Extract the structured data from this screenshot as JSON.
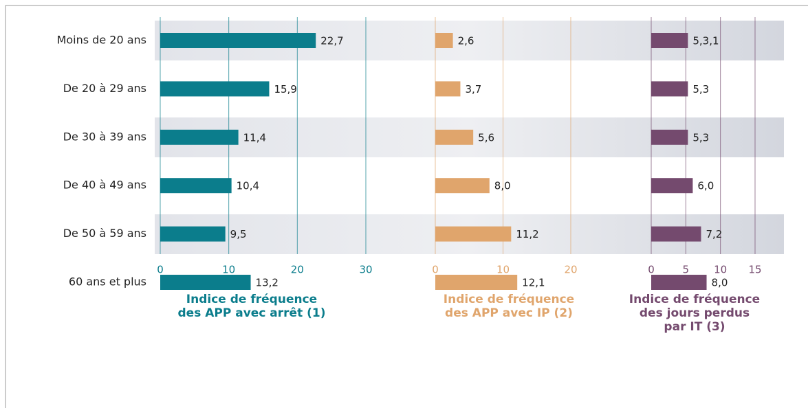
{
  "chart_data": [
    {
      "type": "hbar",
      "title": [
        "Indice de fréquence",
        "des APP avec arrêt (1)"
      ],
      "categories": [
        "Moins de 20 ans",
        "De 20 à 29 ans",
        "De 30 à 39 ans",
        "De 40 à 49 ans",
        "De 50 à 59 ans",
        "60 ans et plus"
      ],
      "values": [
        22.7,
        15.9,
        11.4,
        10.4,
        9.5,
        13.2
      ],
      "value_labels": [
        "22,7",
        "15,9",
        "11,4",
        "10,4",
        "9,5",
        "13,2"
      ],
      "color": "#0b7d8c",
      "xlim": [
        0,
        30
      ],
      "xticks": [
        0,
        10,
        20,
        30
      ],
      "grid": true
    },
    {
      "type": "hbar",
      "title": [
        "Indice de fréquence",
        "des APP avec IP (2)"
      ],
      "values": [
        2.6,
        3.7,
        5.6,
        8.0,
        11.2,
        12.1
      ],
      "value_labels": [
        "2,6",
        "3,7",
        "5,6",
        "8,0",
        "11,2",
        "12,1"
      ],
      "color": "#e0a56c",
      "xlim": [
        0,
        20
      ],
      "xticks": [
        0,
        10,
        20
      ],
      "grid": true
    },
    {
      "type": "hbar",
      "title": [
        "Indice de fréquence",
        "des jours perdus",
        "par IT (3)"
      ],
      "values": [
        5.3,
        5.3,
        5.3,
        6.0,
        7.2,
        8.0
      ],
      "value_labels": [
        "5,3,1",
        "5,3",
        "5,3",
        "6,0",
        "7,2",
        "8,0"
      ],
      "color": "#744a6e",
      "xlim": [
        0,
        15
      ],
      "xticks": [
        0,
        5,
        10,
        15
      ],
      "grid": true
    }
  ]
}
